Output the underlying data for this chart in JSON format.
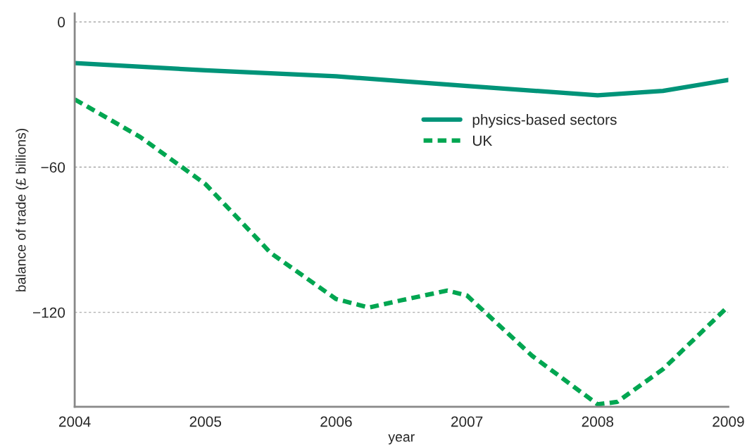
{
  "chart_data": {
    "type": "line",
    "xlabel": "year",
    "ylabel": "balance of trade (£ billions)",
    "x": [
      2004,
      2004.5,
      2005,
      2005.5,
      2006,
      2006.25,
      2006.5,
      2006.85,
      2007,
      2007.5,
      2008,
      2008.15,
      2008.5,
      2009
    ],
    "series": [
      {
        "name": "physics-based sectors",
        "color": "#009479",
        "line_style": "solid",
        "x": [
          2004,
          2005,
          2006,
          2007,
          2008,
          2008.5,
          2009
        ],
        "values": [
          -17,
          -20,
          -22.5,
          -26.5,
          -30.3,
          -28.5,
          -24
        ]
      },
      {
        "name": "UK",
        "color": "#00a651",
        "line_style": "dashed",
        "values": [
          -32,
          -47.5,
          -67,
          -95.5,
          -114.5,
          -118,
          -115,
          -111,
          -113,
          -138,
          -158,
          -157,
          -143.5,
          -117.5
        ]
      }
    ],
    "xlim": [
      2004,
      2009
    ],
    "ylim": [
      -159,
      3.5
    ],
    "xticks": [
      2004,
      2005,
      2006,
      2007,
      2008,
      2009
    ],
    "yticks": [
      {
        "value": 0,
        "label": "0"
      },
      {
        "value": -60,
        "label": "−60"
      },
      {
        "value": -120,
        "label": "−120"
      }
    ],
    "grid": "y",
    "legend": "center right"
  }
}
